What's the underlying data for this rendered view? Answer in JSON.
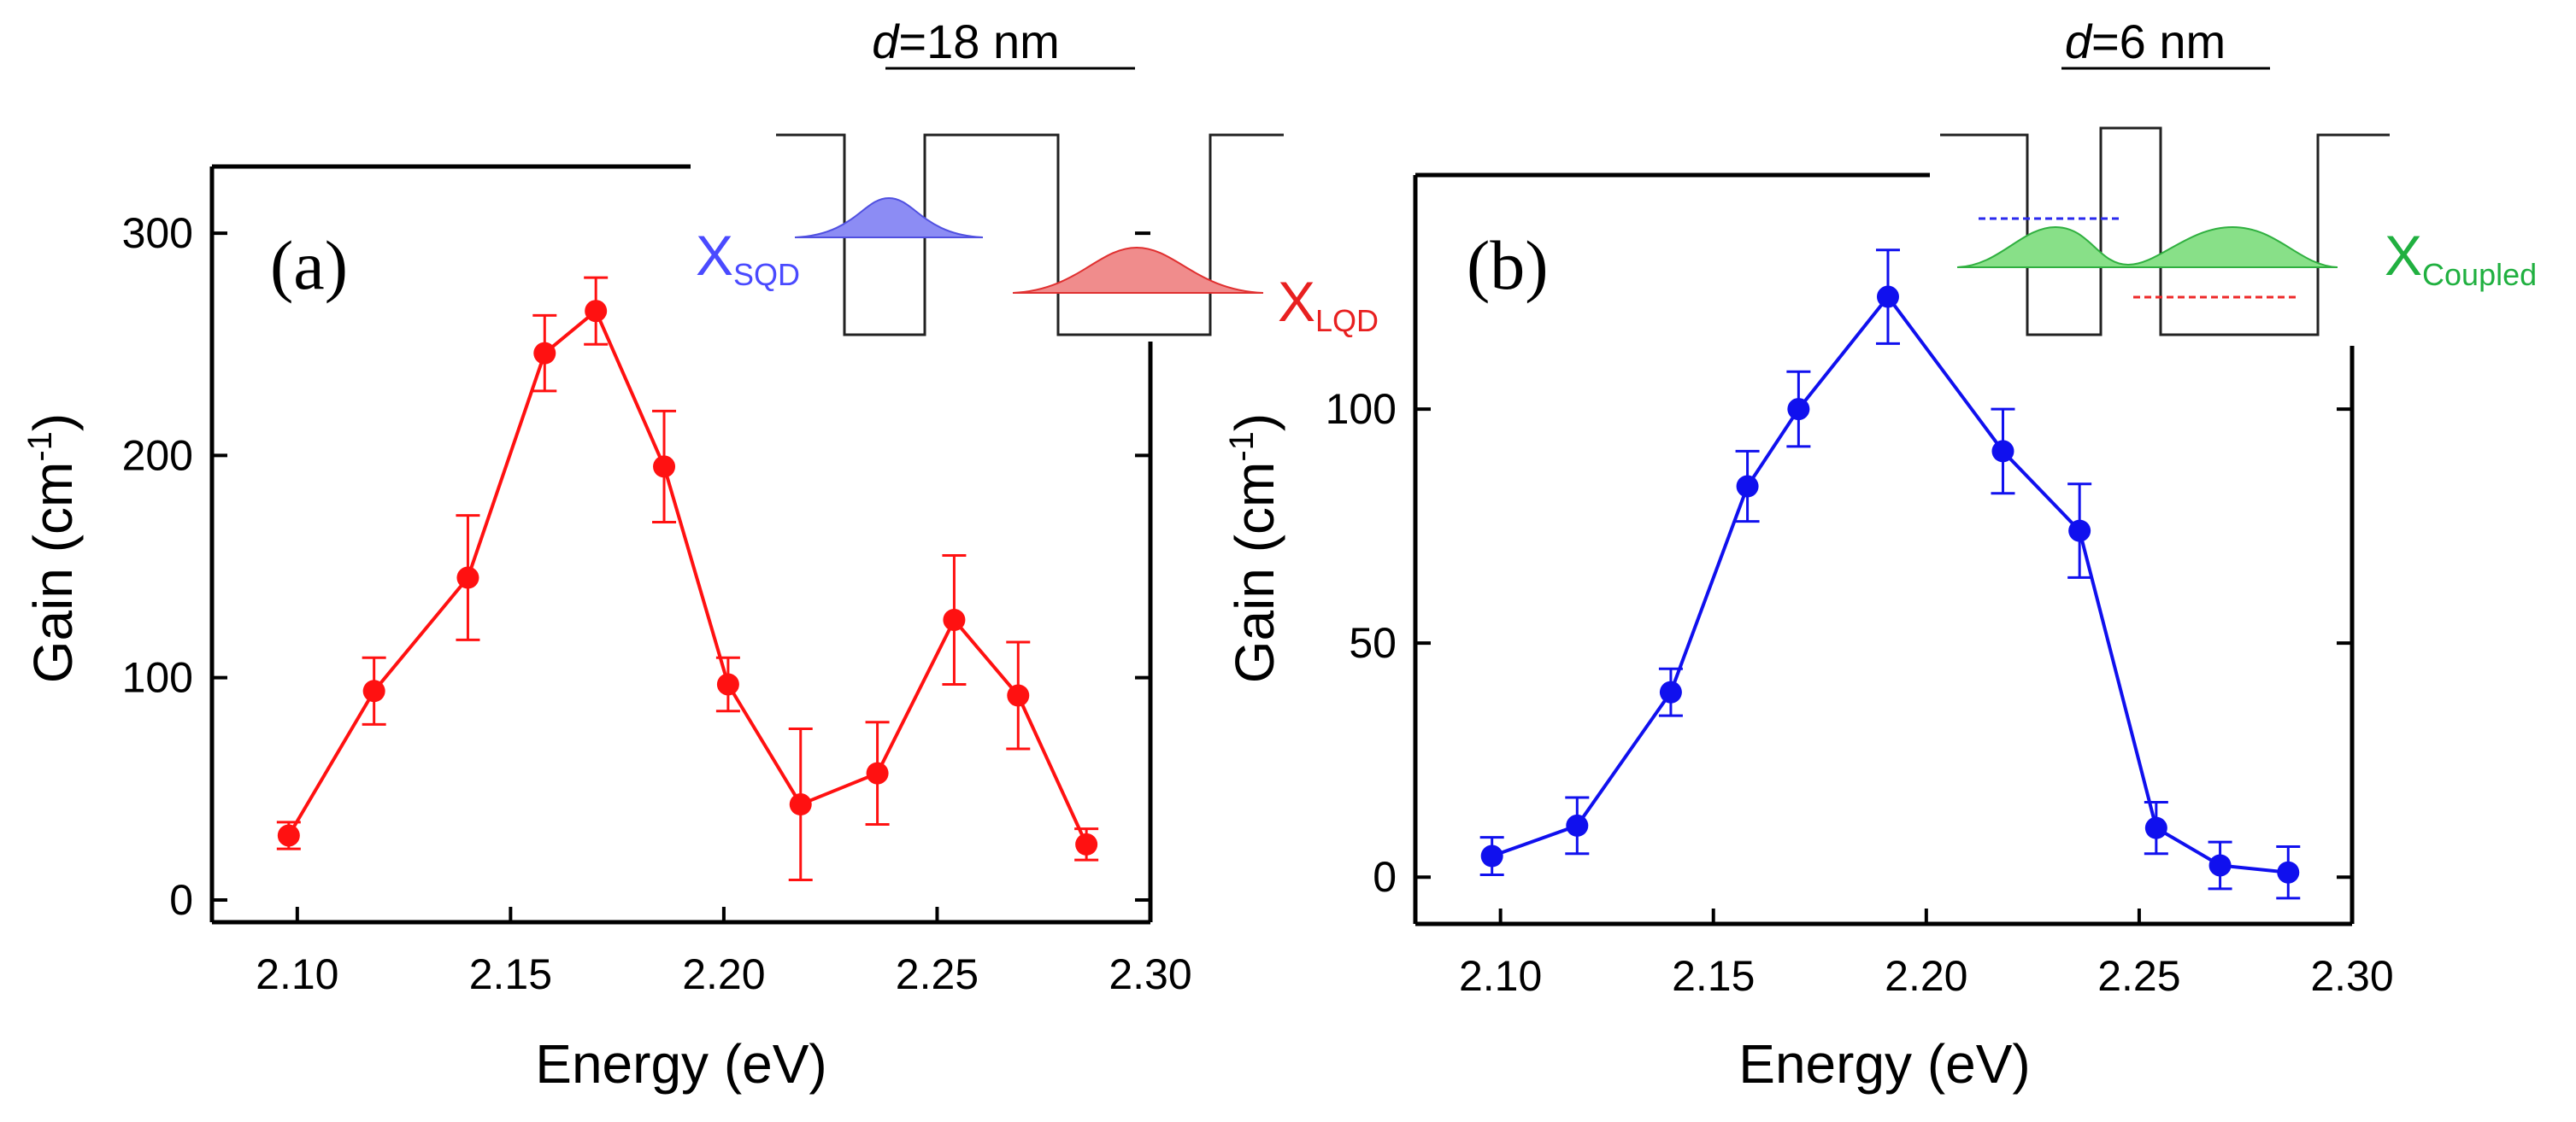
{
  "chart_data": [
    {
      "type": "line",
      "panel_label": "(a)",
      "thickness_prefix": "d",
      "thickness_value": "=18 nm",
      "xlabel": "Energy (eV)",
      "ylabel_main": "Gain (cm",
      "ylabel_sup": "-1",
      "ylabel_close": ")",
      "xlim": [
        2.08,
        2.3
      ],
      "ylim": [
        -10,
        330
      ],
      "xticks": [
        2.1,
        2.15,
        2.2,
        2.25,
        2.3
      ],
      "xtick_labels": [
        "2.10",
        "2.15",
        "2.20",
        "2.25",
        "2.30"
      ],
      "yticks": [
        0,
        100,
        200,
        300
      ],
      "ytick_labels": [
        "0",
        "100",
        "200",
        "300"
      ],
      "color": "#ff1111",
      "series": [
        {
          "name": "Gain",
          "x": [
            2.098,
            2.118,
            2.14,
            2.158,
            2.17,
            2.186,
            2.201,
            2.218,
            2.236,
            2.254,
            2.269,
            2.285
          ],
          "y": [
            29,
            94,
            145,
            246,
            265,
            195,
            97,
            43,
            57,
            126,
            92,
            25
          ],
          "err": [
            6,
            15,
            28,
            17,
            15,
            25,
            12,
            34,
            23,
            29,
            24,
            7
          ]
        }
      ],
      "inset": {
        "label_main": "X",
        "label_sub_left": "SQD",
        "label_sub_right": "LQD",
        "color_left": "#4a4aff",
        "color_right": "#e82020",
        "fill_left": "#8c8cf4",
        "fill_right": "#f08c8c"
      }
    },
    {
      "type": "line",
      "panel_label": "(b)",
      "thickness_prefix": "d",
      "thickness_value": "=6 nm",
      "xlabel": "Energy (eV)",
      "ylabel_main": "Gain (cm",
      "ylabel_sup": "-1",
      "ylabel_close": ")",
      "xlim": [
        2.08,
        2.3
      ],
      "ylim": [
        -10,
        150
      ],
      "xticks": [
        2.1,
        2.15,
        2.2,
        2.25,
        2.3
      ],
      "xtick_labels": [
        "2.10",
        "2.15",
        "2.20",
        "2.25",
        "2.30"
      ],
      "yticks": [
        0,
        50,
        100
      ],
      "ytick_labels": [
        "0",
        "50",
        "100"
      ],
      "color": "#1010ee",
      "series": [
        {
          "name": "Gain",
          "x": [
            2.098,
            2.118,
            2.14,
            2.158,
            2.17,
            2.191,
            2.218,
            2.236,
            2.254,
            2.269,
            2.285
          ],
          "y": [
            4.5,
            11,
            39.5,
            83.5,
            100,
            124,
            91,
            74,
            10.5,
            2.5,
            1
          ],
          "err": [
            4,
            6,
            5,
            7.5,
            8,
            10,
            9,
            10,
            5.5,
            5,
            5.5
          ]
        }
      ],
      "inset": {
        "label_main": "X",
        "label_sub": "Coupled",
        "color": "#20b040",
        "fill": "#88e088",
        "level_left_color": "#2a2aee",
        "level_right_color": "#ee2a2a"
      }
    }
  ]
}
